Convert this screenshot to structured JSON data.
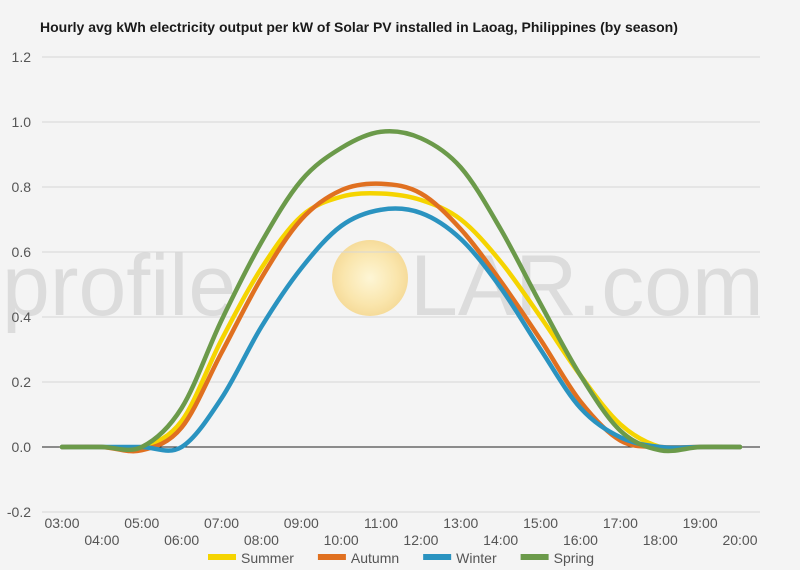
{
  "chart_data": {
    "type": "line",
    "title": "Hourly avg kWh electricity output per kW of Solar PV installed in Laoag, Philippines (by season)",
    "xlabel": "",
    "ylabel": "",
    "ylim": [
      -0.2,
      1.2
    ],
    "yticks": [
      "1.2",
      "1.0",
      "0.8",
      "0.6",
      "0.4",
      "0.2",
      "0.0",
      "-0.2"
    ],
    "x": [
      "03:00",
      "04:00",
      "05:00",
      "06:00",
      "07:00",
      "08:00",
      "09:00",
      "10:00",
      "11:00",
      "12:00",
      "13:00",
      "14:00",
      "15:00",
      "16:00",
      "17:00",
      "18:00",
      "19:00",
      "20:00"
    ],
    "grid": true,
    "legend_position": "bottom",
    "series": [
      {
        "name": "Summer",
        "color": "#f5d400",
        "values": [
          0,
          0,
          0,
          0.08,
          0.33,
          0.55,
          0.71,
          0.77,
          0.78,
          0.76,
          0.7,
          0.57,
          0.4,
          0.22,
          0.07,
          0,
          0,
          0
        ]
      },
      {
        "name": "Autumn",
        "color": "#e07020",
        "values": [
          0,
          0,
          -0.01,
          0.06,
          0.29,
          0.52,
          0.7,
          0.79,
          0.81,
          0.78,
          0.67,
          0.51,
          0.33,
          0.14,
          0.02,
          0,
          0,
          0
        ]
      },
      {
        "name": "Winter",
        "color": "#2a93c0",
        "values": [
          0,
          0,
          0,
          0,
          0.15,
          0.37,
          0.55,
          0.68,
          0.73,
          0.72,
          0.64,
          0.49,
          0.3,
          0.12,
          0.03,
          0,
          0,
          0
        ]
      },
      {
        "name": "Spring",
        "color": "#6b9a4a",
        "values": [
          0,
          0,
          0,
          0.12,
          0.39,
          0.63,
          0.82,
          0.92,
          0.97,
          0.95,
          0.86,
          0.67,
          0.44,
          0.22,
          0.05,
          -0.01,
          0,
          0
        ]
      }
    ]
  },
  "watermark": {
    "left": "profile",
    "right": "LAR.com"
  }
}
